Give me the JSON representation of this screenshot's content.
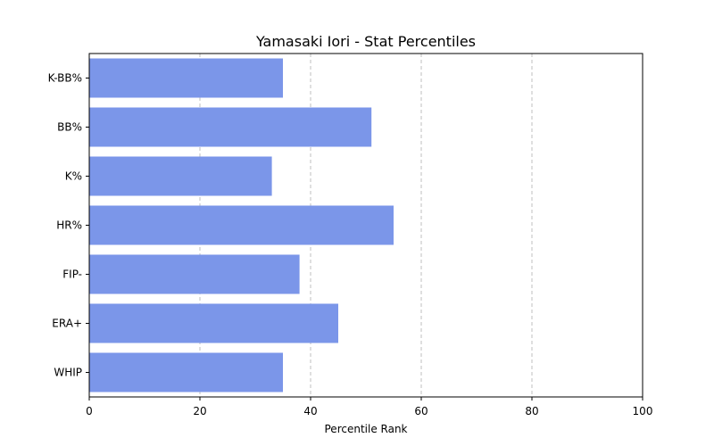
{
  "chart_data": {
    "type": "bar",
    "orientation": "horizontal",
    "title": "Yamasaki Iori - Stat Percentiles",
    "xlabel": "Percentile Rank",
    "ylabel": "",
    "xlim": [
      0,
      100
    ],
    "xticks": [
      0,
      20,
      40,
      60,
      80,
      100
    ],
    "categories": [
      "K-BB%",
      "BB%",
      "K%",
      "HR%",
      "FIP-",
      "ERA+",
      "WHIP"
    ],
    "values": [
      35,
      51,
      33,
      55,
      38,
      45,
      35
    ],
    "bar_color": "#7b96e9",
    "grid": "x-dashed"
  }
}
